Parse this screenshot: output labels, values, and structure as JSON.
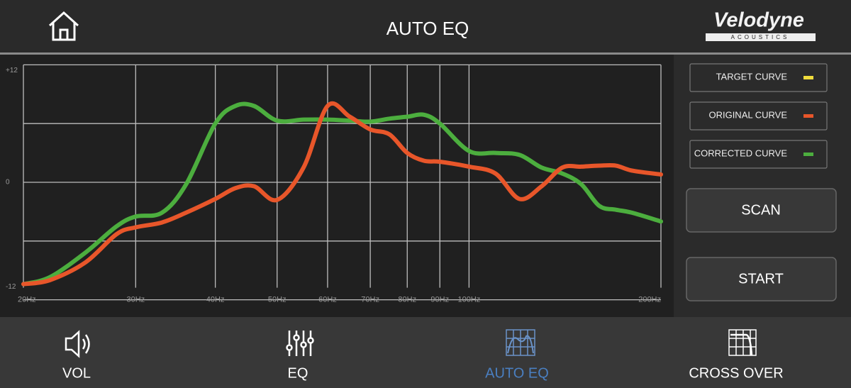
{
  "header": {
    "title": "AUTO EQ",
    "brand": "Velodyne",
    "brand_sub": "ACOUSTICS"
  },
  "chart_data": {
    "type": "line",
    "x": [
      20,
      22,
      25,
      28,
      30,
      33,
      36,
      40,
      43,
      46,
      50,
      55,
      60,
      65,
      70,
      75,
      80,
      85,
      90,
      100,
      110,
      120,
      130,
      140,
      150,
      160,
      170,
      180,
      200
    ],
    "series": [
      {
        "name": "ORIGINAL CURVE",
        "color": "#e8562a",
        "values": [
          -10.4,
          -10.0,
          -8.2,
          -5.3,
          -4.6,
          -4.1,
          -3.1,
          -1.7,
          -0.6,
          -0.4,
          -1.8,
          1.5,
          7.8,
          6.7,
          5.4,
          4.9,
          3.0,
          2.2,
          2.1,
          1.6,
          0.9,
          -1.7,
          -0.4,
          1.5,
          1.6,
          1.7,
          1.7,
          1.2,
          0.8
        ]
      },
      {
        "name": "CORRECTED CURVE",
        "color": "#4cae3e",
        "values": [
          -10.4,
          -9.7,
          -7.2,
          -4.5,
          -3.5,
          -3.1,
          -0.2,
          6.0,
          7.8,
          7.8,
          6.3,
          6.4,
          6.4,
          6.3,
          6.2,
          6.5,
          6.7,
          6.9,
          6.0,
          3.2,
          3.0,
          2.8,
          1.5,
          0.9,
          -0.2,
          -2.4,
          -2.8,
          -3.1,
          -4.0
        ]
      }
    ],
    "target": {
      "name": "TARGET CURVE",
      "color": "#f0dc3c"
    },
    "xlim": [
      20,
      200
    ],
    "xscale": "log",
    "xticks": [
      {
        "value": 20,
        "label": "20Hz"
      },
      {
        "value": 30,
        "label": "30Hz"
      },
      {
        "value": 40,
        "label": "40Hz"
      },
      {
        "value": 50,
        "label": "50Hz"
      },
      {
        "value": 60,
        "label": "60Hz"
      },
      {
        "value": 70,
        "label": "70Hz"
      },
      {
        "value": 80,
        "label": "80Hz"
      },
      {
        "value": 90,
        "label": "90Hz"
      },
      {
        "value": 100,
        "label": "100Hz"
      },
      {
        "value": 200,
        "label": "200Hz"
      }
    ],
    "ylim": [
      -12,
      12
    ],
    "yticks": [
      {
        "value": -12,
        "label": "-12"
      },
      0,
      {
        "value": 12,
        "label": "+12"
      }
    ],
    "ygrid": [
      -6,
      6
    ],
    "grid": true
  },
  "buttons": [
    "SCAN",
    "START"
  ],
  "nav": [
    {
      "label": "VOL"
    },
    {
      "label": "EQ"
    },
    {
      "label": "AUTO EQ",
      "active": true
    },
    {
      "label": "CROSS OVER"
    }
  ]
}
